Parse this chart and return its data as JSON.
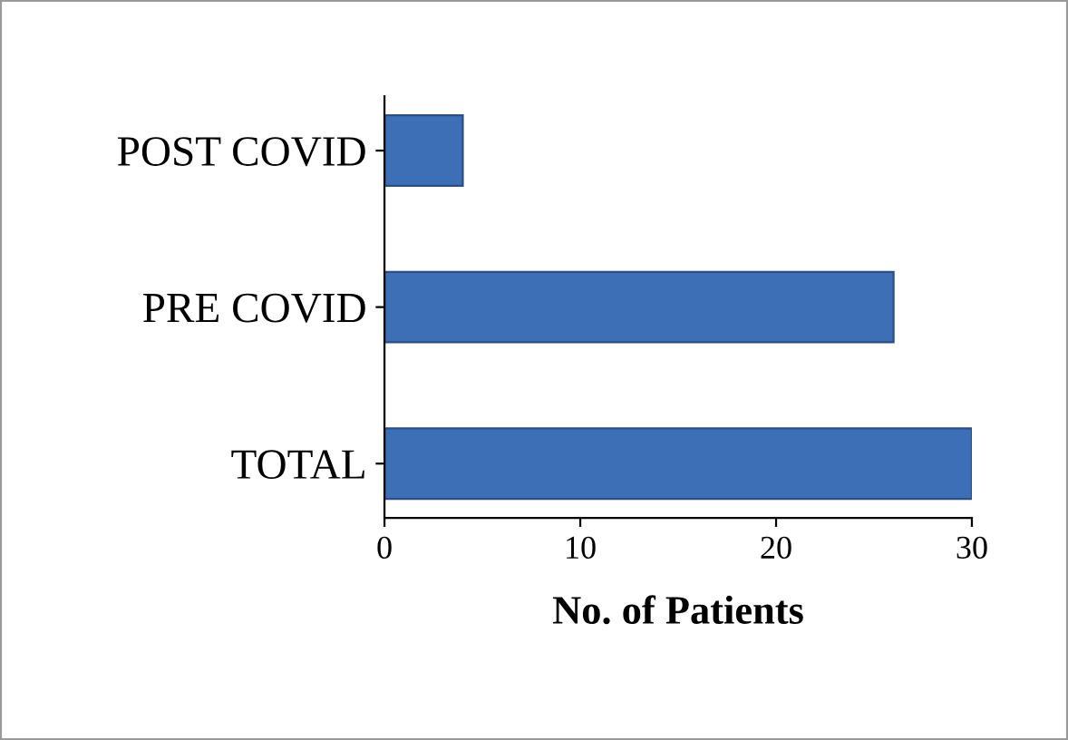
{
  "chart_data": {
    "type": "bar",
    "orientation": "horizontal",
    "xlabel": "No. of Patients",
    "categories": [
      "POST COVID",
      "PRE COVID",
      "TOTAL"
    ],
    "values": [
      4,
      26,
      30
    ],
    "color": "#3d6fb6",
    "xlim": [
      0,
      30
    ],
    "xticks": [
      0,
      10,
      20,
      30
    ],
    "grid": false,
    "legend": false
  }
}
